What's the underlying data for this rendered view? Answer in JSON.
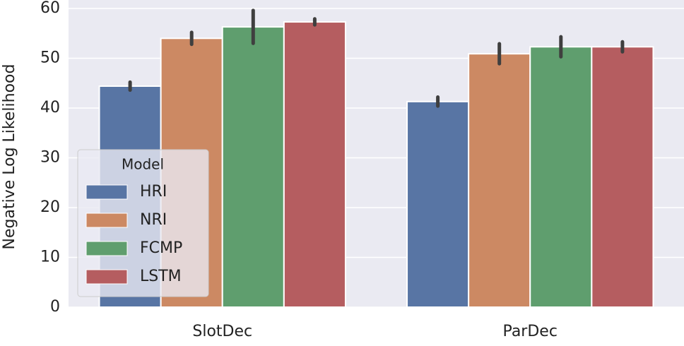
{
  "chart_data": {
    "type": "bar",
    "ylabel": "Negative Log Likelihood",
    "categories": [
      "SlotDec",
      "ParDec"
    ],
    "series": [
      {
        "name": "HRI",
        "color": "#5875a4",
        "values": [
          44.4,
          41.3
        ],
        "errors": [
          0.8,
          0.9
        ]
      },
      {
        "name": "NRI",
        "color": "#cc8963",
        "values": [
          54.0,
          50.9
        ],
        "errors": [
          1.2,
          2.0
        ]
      },
      {
        "name": "FCMP",
        "color": "#5f9e6e",
        "values": [
          56.3,
          52.3
        ],
        "errors": [
          3.3,
          2.0
        ]
      },
      {
        "name": "LSTM",
        "color": "#b55d60",
        "values": [
          57.3,
          52.3
        ],
        "errors": [
          0.6,
          1.0
        ]
      }
    ],
    "legend_title": "Model",
    "legend_position": "lower left",
    "ylim": [
      0,
      60
    ],
    "yticks": [
      0,
      10,
      20,
      30,
      40,
      50,
      60
    ],
    "grid": true
  }
}
